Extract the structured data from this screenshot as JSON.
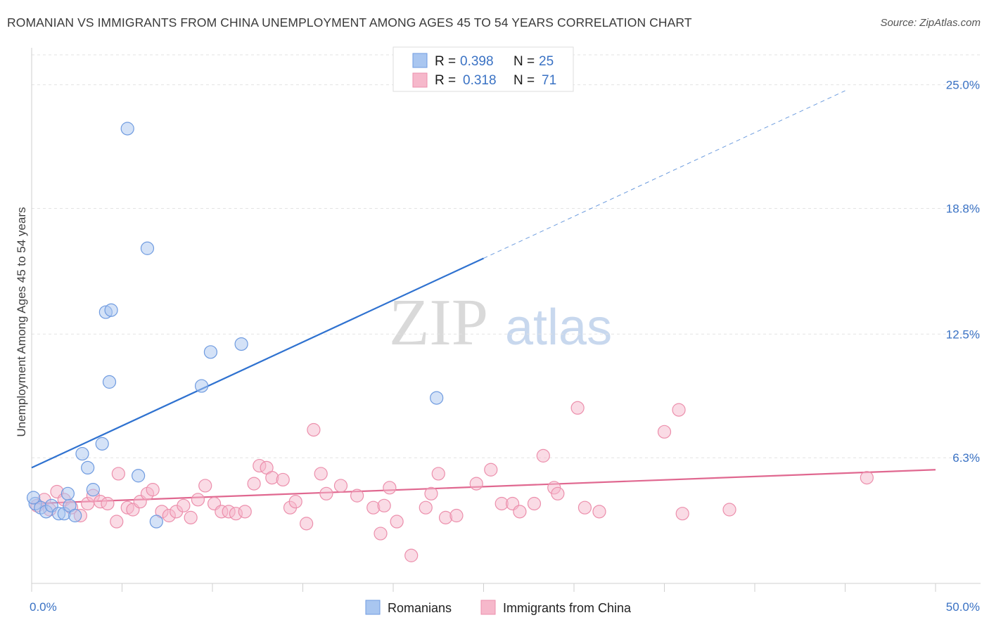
{
  "title": "ROMANIAN VS IMMIGRANTS FROM CHINA UNEMPLOYMENT AMONG AGES 45 TO 54 YEARS CORRELATION CHART",
  "source": "Source: ZipAtlas.com",
  "watermark": {
    "zip": "ZIP",
    "atlas": "atlas"
  },
  "legend": {
    "r_label": "R =",
    "n_label": "N =",
    "rows": [
      {
        "r": "0.398",
        "n": "25"
      },
      {
        "r": "0.318",
        "n": "71"
      }
    ]
  },
  "colors": {
    "blue_fill": "#a9c6f0",
    "blue_stroke": "#6f9be0",
    "blue_line": "#2f72d0",
    "pink_fill": "#f6b8cb",
    "pink_stroke": "#ec8fac",
    "pink_line": "#e06890",
    "tick_text": "#3a72c4"
  },
  "chart_data": {
    "type": "scatter",
    "title": "ROMANIAN VS IMMIGRANTS FROM CHINA UNEMPLOYMENT AMONG AGES 45 TO 54 YEARS CORRELATION CHART",
    "xlabel": "",
    "ylabel": "Unemployment Among Ages 45 to 54 years",
    "xlim": [
      0,
      50
    ],
    "ylim": [
      0,
      26.5
    ],
    "x_tick_labels": [
      {
        "value": 0,
        "label": "0.0%"
      },
      {
        "value": 50,
        "label": "50.0%"
      }
    ],
    "y_tick_labels": [
      {
        "value": 6.3,
        "label": "6.3%"
      },
      {
        "value": 12.5,
        "label": "12.5%"
      },
      {
        "value": 18.8,
        "label": "18.8%"
      },
      {
        "value": 25.0,
        "label": "25.0%"
      }
    ],
    "grid": true,
    "legend_position": "bottom-center",
    "series": [
      {
        "name": "Romanians",
        "color": "#a9c6f0",
        "points": [
          [
            0.2,
            4.0
          ],
          [
            0.5,
            3.8
          ],
          [
            0.8,
            3.6
          ],
          [
            1.1,
            3.9
          ],
          [
            1.5,
            3.5
          ],
          [
            1.8,
            3.5
          ],
          [
            2.1,
            3.9
          ],
          [
            2.0,
            4.5
          ],
          [
            2.4,
            3.4
          ],
          [
            2.8,
            6.5
          ],
          [
            3.1,
            5.8
          ],
          [
            3.4,
            4.7
          ],
          [
            3.9,
            7.0
          ],
          [
            4.1,
            13.6
          ],
          [
            4.3,
            10.1
          ],
          [
            4.4,
            13.7
          ],
          [
            5.3,
            22.8
          ],
          [
            5.9,
            5.4
          ],
          [
            6.4,
            16.8
          ],
          [
            6.9,
            3.1
          ],
          [
            9.4,
            9.9
          ],
          [
            9.9,
            11.6
          ],
          [
            11.6,
            12.0
          ],
          [
            22.4,
            9.3
          ],
          [
            0.1,
            4.3
          ]
        ],
        "trend": {
          "x": [
            0,
            25
          ],
          "y": [
            5.8,
            16.3
          ]
        },
        "trend_extension": {
          "x": [
            25,
            45
          ],
          "y": [
            16.3,
            24.7
          ]
        }
      },
      {
        "name": "Immigrants from China",
        "color": "#f6b8cb",
        "points": [
          [
            0.3,
            3.9
          ],
          [
            0.7,
            4.2
          ],
          [
            1.0,
            3.7
          ],
          [
            1.4,
            4.6
          ],
          [
            1.8,
            4.2
          ],
          [
            2.2,
            3.8
          ],
          [
            2.7,
            3.4
          ],
          [
            3.1,
            4.0
          ],
          [
            3.4,
            4.4
          ],
          [
            3.8,
            4.1
          ],
          [
            4.2,
            4.0
          ],
          [
            4.7,
            3.1
          ],
          [
            4.8,
            5.5
          ],
          [
            5.3,
            3.8
          ],
          [
            5.6,
            3.7
          ],
          [
            6.0,
            4.1
          ],
          [
            6.4,
            4.5
          ],
          [
            6.7,
            4.7
          ],
          [
            7.2,
            3.6
          ],
          [
            7.6,
            3.4
          ],
          [
            8.0,
            3.6
          ],
          [
            8.4,
            3.9
          ],
          [
            8.8,
            3.3
          ],
          [
            9.2,
            4.2
          ],
          [
            9.6,
            4.9
          ],
          [
            10.1,
            4.0
          ],
          [
            10.5,
            3.6
          ],
          [
            10.9,
            3.6
          ],
          [
            11.3,
            3.5
          ],
          [
            11.8,
            3.6
          ],
          [
            12.3,
            5.0
          ],
          [
            12.6,
            5.9
          ],
          [
            13.0,
            5.8
          ],
          [
            13.3,
            5.3
          ],
          [
            13.9,
            5.2
          ],
          [
            14.3,
            3.8
          ],
          [
            14.6,
            4.1
          ],
          [
            15.2,
            3.0
          ],
          [
            15.6,
            7.7
          ],
          [
            16.0,
            5.5
          ],
          [
            16.3,
            4.5
          ],
          [
            17.1,
            4.9
          ],
          [
            18.0,
            4.4
          ],
          [
            18.9,
            3.8
          ],
          [
            19.3,
            2.5
          ],
          [
            19.5,
            3.9
          ],
          [
            19.8,
            4.8
          ],
          [
            20.2,
            3.1
          ],
          [
            21.0,
            1.4
          ],
          [
            21.8,
            3.8
          ],
          [
            22.1,
            4.5
          ],
          [
            22.5,
            5.5
          ],
          [
            22.9,
            3.3
          ],
          [
            23.5,
            3.4
          ],
          [
            24.6,
            5.0
          ],
          [
            25.4,
            5.7
          ],
          [
            26.0,
            4.0
          ],
          [
            26.6,
            4.0
          ],
          [
            27.0,
            3.6
          ],
          [
            27.8,
            4.0
          ],
          [
            28.3,
            6.4
          ],
          [
            28.9,
            4.8
          ],
          [
            29.1,
            4.5
          ],
          [
            30.2,
            8.8
          ],
          [
            30.6,
            3.8
          ],
          [
            31.4,
            3.6
          ],
          [
            35.0,
            7.6
          ],
          [
            35.8,
            8.7
          ],
          [
            36.0,
            3.5
          ],
          [
            38.6,
            3.7
          ],
          [
            46.2,
            5.3
          ]
        ],
        "trend": {
          "x": [
            0,
            50
          ],
          "y": [
            4.0,
            5.7
          ]
        }
      }
    ]
  }
}
